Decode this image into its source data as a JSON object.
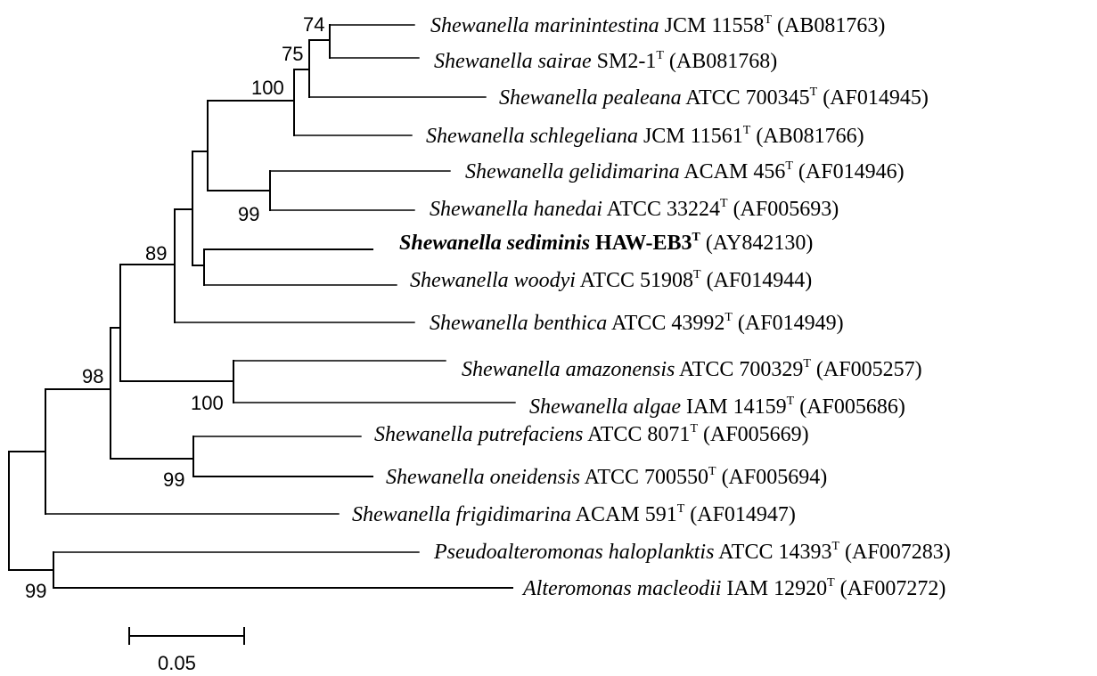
{
  "taxa": [
    {
      "id": "marinintestina",
      "species": "Shewanella marinintestina",
      "strain": "JCM 11558",
      "type": "T",
      "accession": "(AB081763)"
    },
    {
      "id": "sairae",
      "species": "Shewanella sairae",
      "strain": "SM2-1",
      "type": "T",
      "accession": "(AB081768)"
    },
    {
      "id": "pealeana",
      "species": "Shewanella pealeana",
      "strain": "ATCC 700345",
      "type": "T",
      "accession": "(AF014945)"
    },
    {
      "id": "schlegeliana",
      "species": "Shewanella schlegeliana",
      "strain": "JCM 11561",
      "type": "T",
      "accession": "(AB081766)"
    },
    {
      "id": "gelidimarina",
      "species": "Shewanella gelidimarina",
      "strain": "ACAM 456",
      "type": "T",
      "accession": "(AF014946)"
    },
    {
      "id": "hanedai",
      "species": "Shewanella hanedai",
      "strain": "ATCC 33224",
      "type": "T",
      "accession": "(AF005693)"
    },
    {
      "id": "sediminis",
      "species": "Shewanella sediminis",
      "strain": "HAW-EB3",
      "type": "T",
      "accession": "(AY842130)",
      "bold": true
    },
    {
      "id": "woodyi",
      "species": "Shewanella woodyi",
      "strain": "ATCC 51908",
      "type": "T",
      "accession": "(AF014944)"
    },
    {
      "id": "benthica",
      "species": "Shewanella benthica",
      "strain": "ATCC 43992",
      "type": "T",
      "accession": "(AF014949)"
    },
    {
      "id": "amazonensis",
      "species": "Shewanella amazonensis",
      "strain": "ATCC 700329",
      "type": "T",
      "accession": "(AF005257)"
    },
    {
      "id": "algae",
      "species": "Shewanella algae",
      "strain": "IAM 14159",
      "type": "T",
      "accession": "(AF005686)"
    },
    {
      "id": "putrefaciens",
      "species": "Shewanella putrefaciens",
      "strain": "ATCC 8071",
      "type": "T",
      "accession": "(AF005669)"
    },
    {
      "id": "oneidensis",
      "species": "Shewanella oneidensis",
      "strain": "ATCC 700550",
      "type": "T",
      "accession": "(AF005694)"
    },
    {
      "id": "frigidimarina",
      "species": "Shewanella frigidimarina",
      "strain": "ACAM 591",
      "type": "T",
      "accession": "(AF014947)"
    },
    {
      "id": "haloplanktis",
      "species": "Pseudoalteromonas haloplanktis",
      "strain": "ATCC 14393",
      "type": "T",
      "accession": "(AF007283)"
    },
    {
      "id": "macleodii",
      "species": "Alteromonas macleodii",
      "strain": "IAM 12920",
      "type": "T",
      "accession": "(AF007272)"
    }
  ],
  "bootstrap": {
    "b74": "74",
    "b75": "75",
    "b100a": "100",
    "b99a": "99",
    "b89": "89",
    "b98": "98",
    "b100b": "100",
    "b99b": "99",
    "b99c": "99"
  },
  "scale_bar": {
    "label": "0.05",
    "length": 0.05
  }
}
